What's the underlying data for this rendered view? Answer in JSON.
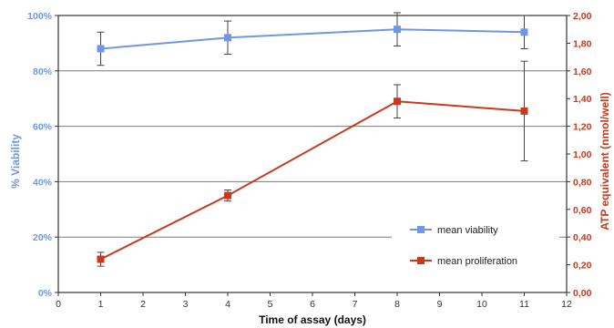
{
  "chart_data": {
    "type": "line",
    "title": "",
    "xlabel": "Time of assay (days)",
    "ylabel_left": "% Viability",
    "ylabel_right": "ATP equivalent (nmol/well)",
    "xlim": [
      0,
      12
    ],
    "x_ticks": [
      "0",
      "1",
      "2",
      "3",
      "4",
      "5",
      "6",
      "7",
      "8",
      "9",
      "10",
      "11",
      "12"
    ],
    "ylim_left": [
      0,
      100
    ],
    "y_ticks_left": [
      "0%",
      "20%",
      "40%",
      "60%",
      "80%",
      "100%"
    ],
    "ylim_right": [
      0,
      2.0
    ],
    "y_ticks_right": [
      "0,00",
      "0,20",
      "0,40",
      "0,60",
      "0,80",
      "1,00",
      "1,20",
      "1,40",
      "1,60",
      "1,80",
      "2,00"
    ],
    "grid": "horizontal",
    "legend_position": "bottom-right",
    "series": [
      {
        "name": "mean viability",
        "axis": "left",
        "color": "#6f96e8",
        "marker": "square",
        "x": [
          1,
          4,
          8,
          11
        ],
        "y": [
          88,
          92,
          95,
          94
        ],
        "error": [
          6,
          6,
          6,
          6
        ]
      },
      {
        "name": "mean proliferation",
        "axis": "right",
        "color": "#c8391e",
        "marker": "square",
        "x": [
          1,
          4,
          8,
          11
        ],
        "y": [
          0.24,
          0.7,
          1.38,
          1.31
        ],
        "error": [
          0.05,
          0.04,
          0.12,
          0.36
        ]
      }
    ]
  }
}
